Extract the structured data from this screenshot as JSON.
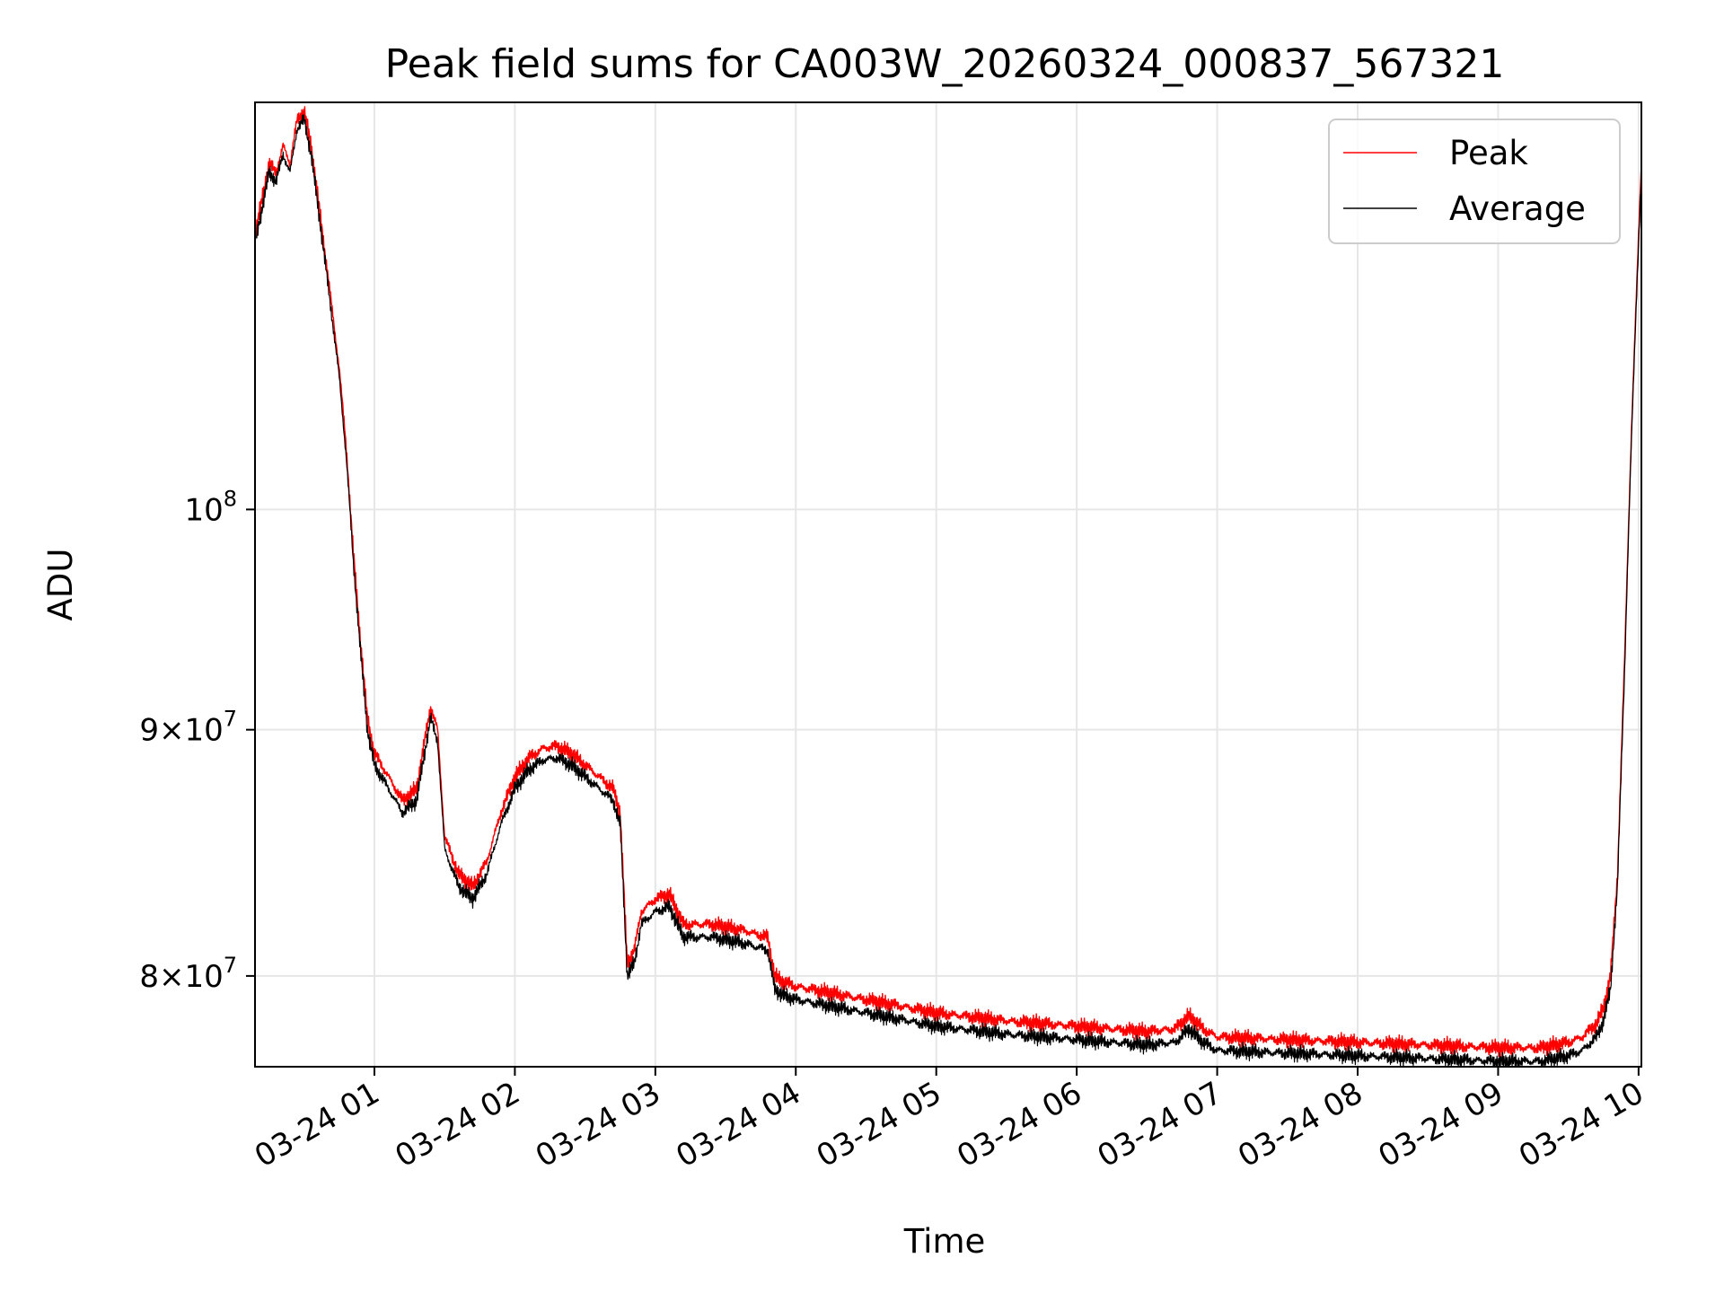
{
  "chart_data": {
    "type": "line",
    "title": "Peak field sums for CA003W_20260324_000837_567321",
    "xlabel": "Time",
    "ylabel": "ADU",
    "yscale": "log",
    "grid": true,
    "legend_position": "top-right",
    "xlim_hours": [
      0.15,
      10.02
    ],
    "ylim": [
      76600000,
      121500000
    ],
    "x_ticks": [
      {
        "value": 1,
        "label": "03-24 01"
      },
      {
        "value": 2,
        "label": "03-24 02"
      },
      {
        "value": 3,
        "label": "03-24 03"
      },
      {
        "value": 4,
        "label": "03-24 04"
      },
      {
        "value": 5,
        "label": "03-24 05"
      },
      {
        "value": 6,
        "label": "03-24 06"
      },
      {
        "value": 7,
        "label": "03-24 07"
      },
      {
        "value": 8,
        "label": "03-24 08"
      },
      {
        "value": 9,
        "label": "03-24 09"
      },
      {
        "value": 10,
        "label": "03-24 10"
      }
    ],
    "y_ticks": [
      {
        "value": 80000000,
        "mantissa": "8",
        "exponent": "7"
      },
      {
        "value": 90000000,
        "mantissa": "9",
        "exponent": "7"
      },
      {
        "value": 100000000,
        "mantissa": "",
        "exponent": "8"
      }
    ],
    "y_tick_base": "10",
    "y_tick_times": "×",
    "series": [
      {
        "name": "Peak",
        "color": "#ff0000",
        "x": [
          0.15,
          0.2,
          0.25,
          0.3,
          0.35,
          0.4,
          0.45,
          0.5,
          0.55,
          0.6,
          0.65,
          0.7,
          0.75,
          0.8,
          0.85,
          0.9,
          0.95,
          1.0,
          1.1,
          1.2,
          1.3,
          1.4,
          1.45,
          1.5,
          1.6,
          1.7,
          1.8,
          1.9,
          2.0,
          2.1,
          2.2,
          2.3,
          2.4,
          2.5,
          2.6,
          2.7,
          2.75,
          2.8,
          2.85,
          2.9,
          3.0,
          3.1,
          3.2,
          3.4,
          3.6,
          3.8,
          3.85,
          3.9,
          4.0,
          4.2,
          4.4,
          4.6,
          4.8,
          5.0,
          5.5,
          6.0,
          6.5,
          6.7,
          6.8,
          6.9,
          7.0,
          7.5,
          8.0,
          8.5,
          9.0,
          9.3,
          9.5,
          9.6,
          9.7,
          9.75,
          9.8,
          9.85,
          9.9,
          9.95,
          10.02
        ],
        "values": [
          114000000,
          116000000,
          118000000,
          117500000,
          119000000,
          118000000,
          120500000,
          121000000,
          119000000,
          116000000,
          113000000,
          110000000,
          107000000,
          103000000,
          98000000,
          94000000,
          90500000,
          89000000,
          88000000,
          87000000,
          87500000,
          91000000,
          90000000,
          85500000,
          84000000,
          83500000,
          84500000,
          86500000,
          88000000,
          88800000,
          89200000,
          89300000,
          89000000,
          88500000,
          88000000,
          87500000,
          86500000,
          80500000,
          81000000,
          82500000,
          83000000,
          83200000,
          82000000,
          82000000,
          81800000,
          81500000,
          80000000,
          79800000,
          79600000,
          79400000,
          79200000,
          79000000,
          78800000,
          78600000,
          78300000,
          78100000,
          77900000,
          78000000,
          78500000,
          78000000,
          77700000,
          77600000,
          77500000,
          77400000,
          77300000,
          77300000,
          77500000,
          77700000,
          78200000,
          78800000,
          80000000,
          84000000,
          93000000,
          104000000,
          118000000
        ]
      },
      {
        "name": "Average",
        "color": "#000000",
        "x": [
          0.15,
          0.2,
          0.25,
          0.3,
          0.35,
          0.4,
          0.45,
          0.5,
          0.55,
          0.6,
          0.65,
          0.7,
          0.75,
          0.8,
          0.85,
          0.9,
          0.95,
          1.0,
          1.1,
          1.2,
          1.3,
          1.4,
          1.45,
          1.5,
          1.6,
          1.7,
          1.8,
          1.9,
          2.0,
          2.1,
          2.2,
          2.3,
          2.4,
          2.5,
          2.6,
          2.7,
          2.75,
          2.8,
          2.85,
          2.9,
          3.0,
          3.1,
          3.2,
          3.4,
          3.6,
          3.8,
          3.85,
          3.9,
          4.0,
          4.2,
          4.4,
          4.6,
          4.8,
          5.0,
          5.5,
          6.0,
          6.5,
          6.7,
          6.8,
          6.9,
          7.0,
          7.5,
          8.0,
          8.5,
          9.0,
          9.3,
          9.5,
          9.6,
          9.7,
          9.75,
          9.8,
          9.85,
          9.9,
          9.95,
          10.02
        ],
        "values": [
          113500000,
          115500000,
          117500000,
          117000000,
          118500000,
          117500000,
          120000000,
          120500000,
          118500000,
          115500000,
          112500000,
          109500000,
          106500000,
          102500000,
          97500000,
          93500000,
          90000000,
          88500000,
          87500000,
          86500000,
          87000000,
          90500000,
          89500000,
          85000000,
          83500000,
          83000000,
          84000000,
          86000000,
          87500000,
          88300000,
          88700000,
          88800000,
          88500000,
          88000000,
          87500000,
          87000000,
          86000000,
          80000000,
          80500000,
          82000000,
          82500000,
          82700000,
          81500000,
          81500000,
          81300000,
          81000000,
          79500000,
          79300000,
          79100000,
          78900000,
          78700000,
          78500000,
          78300000,
          78100000,
          77800000,
          77600000,
          77400000,
          77500000,
          78000000,
          77500000,
          77200000,
          77100000,
          77000000,
          76900000,
          76800000,
          76800000,
          77000000,
          77200000,
          77700000,
          78300000,
          79500000,
          83500000,
          92500000,
          103500000,
          117500000
        ]
      }
    ]
  }
}
